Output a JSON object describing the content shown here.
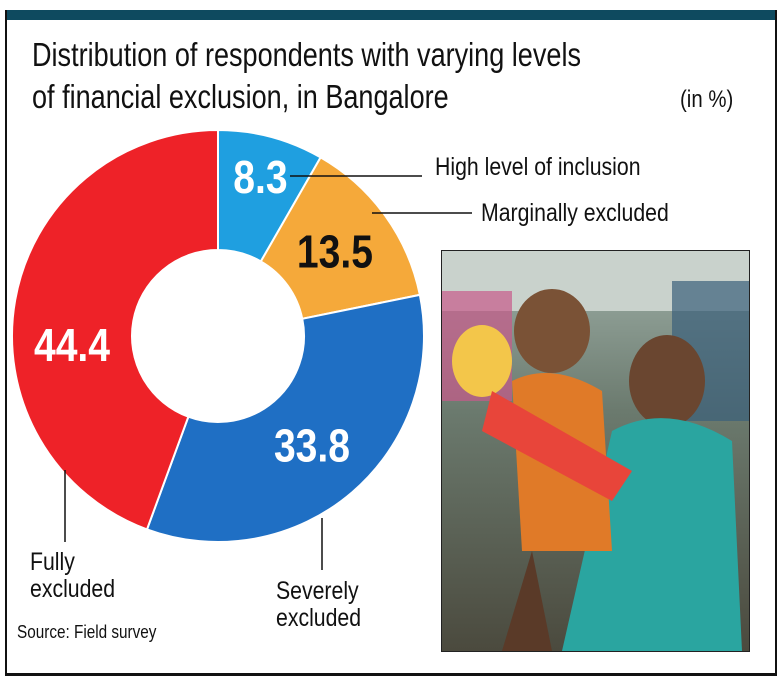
{
  "chart_data": {
    "type": "pie",
    "variant": "donut",
    "title": "Distribution of respondents with varying levels of financial exclusion, in Bangalore",
    "unit": "(in %)",
    "slices": [
      {
        "label": "High level of inclusion",
        "value": 8.3,
        "color": "#1f9fe0",
        "value_text_color": "#ffffff"
      },
      {
        "label": "Marginally excluded",
        "value": 13.5,
        "color": "#f5a93a",
        "value_text_color": "#111111"
      },
      {
        "label": "Severely excluded",
        "value": 33.8,
        "color": "#1f6fc4",
        "value_text_color": "#ffffff"
      },
      {
        "label": "Fully excluded",
        "value": 44.4,
        "color": "#ee2228",
        "value_text_color": "#ffffff"
      }
    ],
    "start": "top",
    "direction": "clockwise",
    "source": "Source: Field survey"
  },
  "title_line1": "Distribution of respondents with varying levels",
  "title_line2": "of financial exclusion, in Bangalore",
  "labels": {
    "high": "High level of inclusion",
    "marginal": "Marginally excluded",
    "severe1": "Severely",
    "severe2": "excluded",
    "fully1": "Fully",
    "fully2": "excluded"
  },
  "accent_bar_color": "#0e4a5f",
  "photo": "photo of a smiling woman holding a child with a doll"
}
